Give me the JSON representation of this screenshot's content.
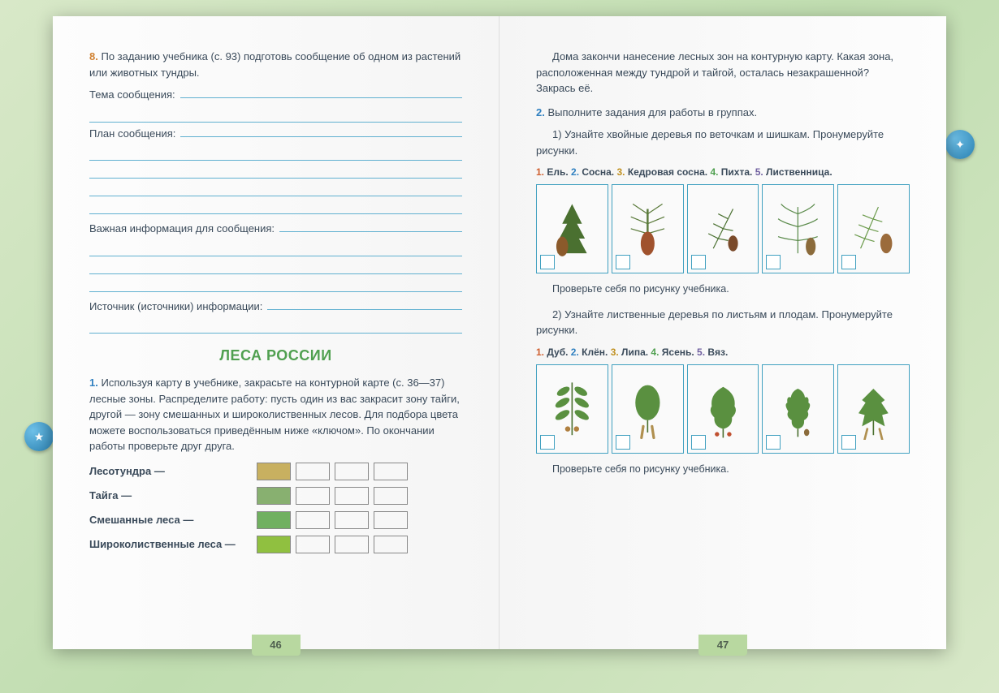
{
  "left": {
    "task8_num": "8.",
    "task8_text": "По заданию учебника (с. 93) подготовь сообщение об одном из растений или животных тундры.",
    "label_topic": "Тема сообщения:",
    "label_plan": "План сообщения:",
    "label_important": "Важная информация для сообщения:",
    "label_source": "Источник (источники) информации:",
    "section_title": "Леса России",
    "task1_num": "1.",
    "task1_text": "Используя карту в учебнике, закрасьте на контурной карте (с. 36—37) лесные зоны. Распределите работу: пусть один из вас закрасит зону тайги, другой — зону смешанных и широколиственных лесов. Для подбора цвета можете воспользоваться приведённым ниже «ключом». По окончании работы проверьте друг друга.",
    "key_rows": [
      {
        "label": "Лесотундра —",
        "color": "#c8b060"
      },
      {
        "label": "Тайга —",
        "color": "#88b070"
      },
      {
        "label": "Смешанные леса —",
        "color": "#70b060"
      },
      {
        "label": "Широколиственные леса —",
        "color": "#90c040"
      }
    ],
    "page_num": "46"
  },
  "right": {
    "intro": "Дома закончи нанесение лесных зон на контурную карту. Какая зона, расположенная между тундрой и тайгой, осталась незакрашенной? Закрась её.",
    "task2_num": "2.",
    "task2_text": "Выполните задания для работы в группах.",
    "sub1": "1) Узнайте хвойные деревья по веточкам и шишкам. Пронумеруйте рисунки.",
    "conifers": [
      {
        "n": "1.",
        "name": "Ель.",
        "cls": "n1"
      },
      {
        "n": "2.",
        "name": "Сосна.",
        "cls": "n2"
      },
      {
        "n": "3.",
        "name": "Кедровая сосна.",
        "cls": "n3"
      },
      {
        "n": "4.",
        "name": "Пихта.",
        "cls": "n4"
      },
      {
        "n": "5.",
        "name": "Лиственница.",
        "cls": "n5"
      }
    ],
    "check1": "Проверьте себя по рисунку учебника.",
    "sub2": "2) Узнайте лиственные деревья по листьям и плодам. Пронумеруйте рисунки.",
    "deciduous": [
      {
        "n": "1.",
        "name": "Дуб.",
        "cls": "n1"
      },
      {
        "n": "2.",
        "name": "Клён.",
        "cls": "n2"
      },
      {
        "n": "3.",
        "name": "Липа.",
        "cls": "n3"
      },
      {
        "n": "4.",
        "name": "Ясень.",
        "cls": "n4"
      },
      {
        "n": "5.",
        "name": "Вяз.",
        "cls": "n5"
      }
    ],
    "check2": "Проверьте себя по рисунку учебника.",
    "page_num": "47"
  },
  "colors": {
    "accent_orange": "#d08030",
    "accent_blue": "#3080c0",
    "line": "#60b0d0",
    "title_green": "#50a050",
    "card_border": "#40a0c0"
  }
}
